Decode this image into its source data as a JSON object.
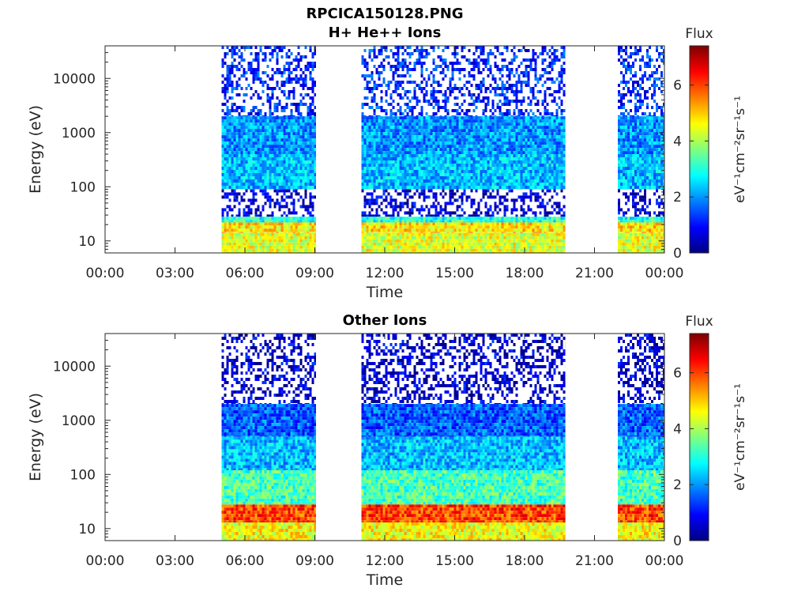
{
  "figure": {
    "title": "RPCICA150128.PNG",
    "panel_titles": [
      "H+ He++ Ions",
      "Other Ions"
    ]
  },
  "chart_data": [
    {
      "type": "heatmap",
      "title": "H+ He++ Ions",
      "xlabel": "Time",
      "ylabel": "Energy (eV)",
      "xticks": [
        "00:00",
        "03:00",
        "06:00",
        "09:00",
        "12:00",
        "15:00",
        "18:00",
        "21:00",
        "00:00"
      ],
      "xlim_hours": [
        0,
        24
      ],
      "yscale": "log",
      "ylim": [
        6,
        40000
      ],
      "yticks": [
        10,
        100,
        1000,
        10000
      ],
      "ytick_labels": [
        "10",
        "100",
        "1000",
        "10000"
      ],
      "colorbar": {
        "label": "Flux",
        "unit": "eV⁻¹cm⁻²sr⁻¹s⁻¹",
        "range": [
          0,
          7.4
        ],
        "ticks": [
          0,
          2,
          4,
          6
        ],
        "colormap": "jet"
      },
      "data_intervals_hours": [
        [
          5.0,
          9.05
        ],
        [
          11.0,
          19.75
        ],
        [
          22.0,
          24.0
        ]
      ],
      "bands": [
        {
          "emin": 6,
          "emax": 14,
          "flux": 4.4
        },
        {
          "emin": 14,
          "emax": 22,
          "flux": 4.8
        },
        {
          "emin": 22,
          "emax": 28,
          "flux": 3.0
        },
        {
          "emin": 28,
          "emax": 90,
          "flux": 0.6
        },
        {
          "emin": 90,
          "emax": 400,
          "flux": 2.3
        },
        {
          "emin": 400,
          "emax": 2000,
          "flux": 2.0
        },
        {
          "emin": 2000,
          "emax": 40000,
          "flux": 1.2
        }
      ]
    },
    {
      "type": "heatmap",
      "title": "Other Ions",
      "xlabel": "Time",
      "ylabel": "Energy (eV)",
      "xticks": [
        "00:00",
        "03:00",
        "06:00",
        "09:00",
        "12:00",
        "15:00",
        "18:00",
        "21:00",
        "00:00"
      ],
      "xlim_hours": [
        0,
        24
      ],
      "yscale": "log",
      "ylim": [
        6,
        40000
      ],
      "yticks": [
        10,
        100,
        1000,
        10000
      ],
      "ytick_labels": [
        "10",
        "100",
        "1000",
        "10000"
      ],
      "colorbar": {
        "label": "Flux",
        "unit": "eV⁻¹cm⁻²sr⁻¹s⁻¹",
        "range": [
          0,
          7.4
        ],
        "ticks": [
          0,
          2,
          4,
          6
        ],
        "colormap": "jet"
      },
      "data_intervals_hours": [
        [
          5.0,
          9.05
        ],
        [
          11.0,
          19.75
        ],
        [
          22.0,
          24.0
        ]
      ],
      "bands": [
        {
          "emin": 6,
          "emax": 13,
          "flux": 4.6
        },
        {
          "emin": 13,
          "emax": 28,
          "flux": 6.0
        },
        {
          "emin": 28,
          "emax": 120,
          "flux": 3.3
        },
        {
          "emin": 120,
          "emax": 500,
          "flux": 2.3
        },
        {
          "emin": 500,
          "emax": 2000,
          "flux": 1.6
        },
        {
          "emin": 2000,
          "emax": 40000,
          "flux": 0.6
        }
      ]
    }
  ]
}
